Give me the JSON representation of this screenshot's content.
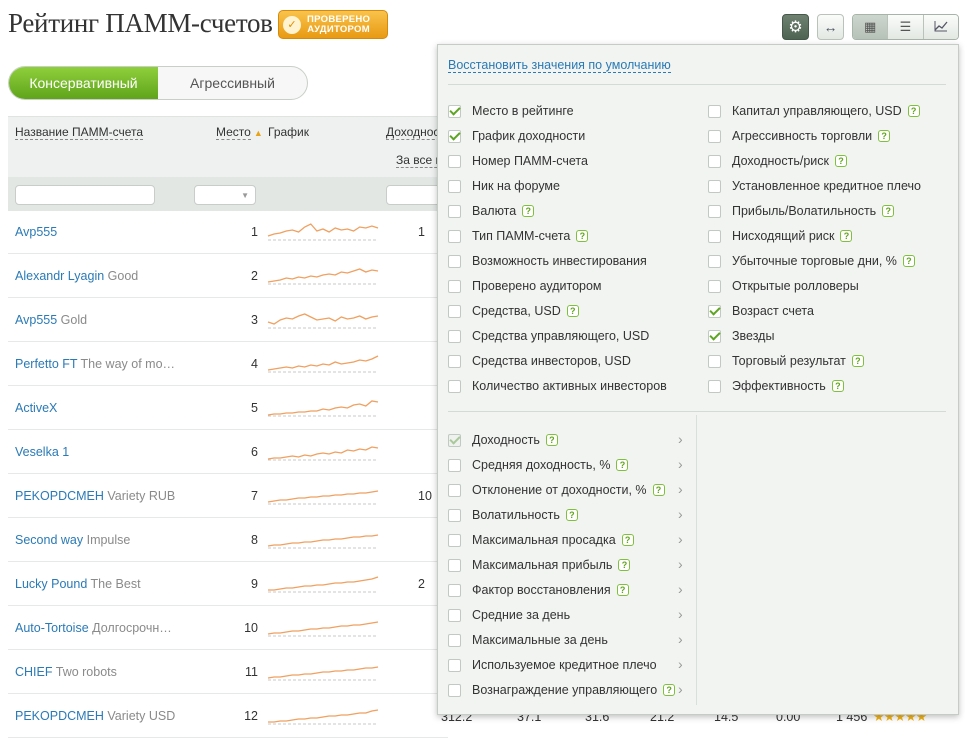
{
  "page": {
    "title": "Рейтинг ПАММ-счетов"
  },
  "badge": {
    "line1": "ПРОВЕРЕНО",
    "line2": "АУДИТОРОМ"
  },
  "toolbar": {
    "gear": "⚙",
    "arrows": "↔",
    "view_table": "▦",
    "view_list": "☰",
    "view_chart": "📈"
  },
  "tabs": [
    {
      "label": "Консервативный",
      "active": true
    },
    {
      "label": "Агрессивный",
      "active": false
    }
  ],
  "table": {
    "headers": {
      "name": "Название ПАММ-счета",
      "place": "Место",
      "sort": "▲",
      "chart": "График",
      "yield": "Доходност"
    },
    "sub_header": "За все в",
    "rows": [
      {
        "name": "Avp555",
        "sub": "",
        "place": "1",
        "value": "1"
      },
      {
        "name": "Alexandr Lyagin",
        "sub": "Good",
        "place": "2",
        "value": ""
      },
      {
        "name": "Avp555",
        "sub": "Gold",
        "place": "3",
        "value": ""
      },
      {
        "name": "Perfetto FT",
        "sub": "The way of mo…",
        "place": "4",
        "value": ""
      },
      {
        "name": "ActiveX",
        "sub": "",
        "place": "5",
        "value": ""
      },
      {
        "name": "Veselka 1",
        "sub": "",
        "place": "6",
        "value": ""
      },
      {
        "name": "PEKOPDCMEH",
        "sub": "Variety RUB",
        "place": "7",
        "value": "10"
      },
      {
        "name": "Second way",
        "sub": "Impulse",
        "place": "8",
        "value": ""
      },
      {
        "name": "Lucky Pound",
        "sub": "The Best",
        "place": "9",
        "value": "2"
      },
      {
        "name": "Auto-Tortoise",
        "sub": "Долгосрочн…",
        "place": "10",
        "value": ""
      },
      {
        "name": "CHIEF",
        "sub": "Two robots",
        "place": "11",
        "value": ""
      },
      {
        "name": "PEKOPDCMEH",
        "sub": "Variety USD",
        "place": "12",
        "value": ""
      }
    ],
    "last_row_values": [
      "312.2",
      "37.1",
      "31.6",
      "21.2",
      "14.5",
      "0.00",
      "1 456"
    ],
    "last_row_stars": "★★★★★"
  },
  "settings": {
    "reset_label": "Восстановить значения по умолчанию",
    "left_options": [
      {
        "label": "Место в рейтинге",
        "checked": true,
        "help": false
      },
      {
        "label": "График доходности",
        "checked": true,
        "help": false
      },
      {
        "label": "Номер ПАММ-счета",
        "checked": false,
        "help": false
      },
      {
        "label": "Ник на форуме",
        "checked": false,
        "help": false
      },
      {
        "label": "Валюта",
        "checked": false,
        "help": true
      },
      {
        "label": "Тип ПАММ-счета",
        "checked": false,
        "help": true
      },
      {
        "label": "Возможность инвестирования",
        "checked": false,
        "help": false
      },
      {
        "label": "Проверено аудитором",
        "checked": false,
        "help": false
      },
      {
        "label": "Средства, USD",
        "checked": false,
        "help": true
      },
      {
        "label": "Средства управляющего, USD",
        "checked": false,
        "help": false
      },
      {
        "label": "Средства инвесторов, USD",
        "checked": false,
        "help": false
      },
      {
        "label": "Количество активных инвесторов",
        "checked": false,
        "help": false
      }
    ],
    "right_options": [
      {
        "label": "Капитал управляющего, USD",
        "checked": false,
        "help": true
      },
      {
        "label": "Агрессивность торговли",
        "checked": false,
        "help": true
      },
      {
        "label": "Доходность/риск",
        "checked": false,
        "help": true
      },
      {
        "label": "Установленное кредитное плечо",
        "checked": false,
        "help": false
      },
      {
        "label": "Прибыль/Волатильность",
        "checked": false,
        "help": true
      },
      {
        "label": "Нисходящий риск",
        "checked": false,
        "help": true
      },
      {
        "label": "Убыточные торговые дни, %",
        "checked": false,
        "help": true
      },
      {
        "label": "Открытые ролловеры",
        "checked": false,
        "help": false
      },
      {
        "label": "Возраст счета",
        "checked": true,
        "help": false
      },
      {
        "label": "Звезды",
        "checked": true,
        "help": false
      },
      {
        "label": "Торговый результат",
        "checked": false,
        "help": true
      },
      {
        "label": "Эффективность",
        "checked": false,
        "help": true
      }
    ],
    "sub_options": [
      {
        "label": "Доходность",
        "checked": true,
        "disabled": true,
        "help": true
      },
      {
        "label": "Средняя доходность, %",
        "checked": false,
        "help": true
      },
      {
        "label": "Отклонение от доходности, %",
        "checked": false,
        "help": true
      },
      {
        "label": "Волатильность",
        "checked": false,
        "help": true
      },
      {
        "label": "Максимальная просадка",
        "checked": false,
        "help": true
      },
      {
        "label": "Максимальная прибыль",
        "checked": false,
        "help": true
      },
      {
        "label": "Фактор восстановления",
        "checked": false,
        "help": true
      },
      {
        "label": "Средние за день",
        "checked": false,
        "help": false
      },
      {
        "label": "Максимальные за день",
        "checked": false,
        "help": false
      },
      {
        "label": "Используемое кредитное плечо",
        "checked": false,
        "help": false
      },
      {
        "label": "Вознаграждение управляющего",
        "checked": false,
        "help": true
      }
    ],
    "chevron": "›",
    "help_glyph": "?"
  }
}
